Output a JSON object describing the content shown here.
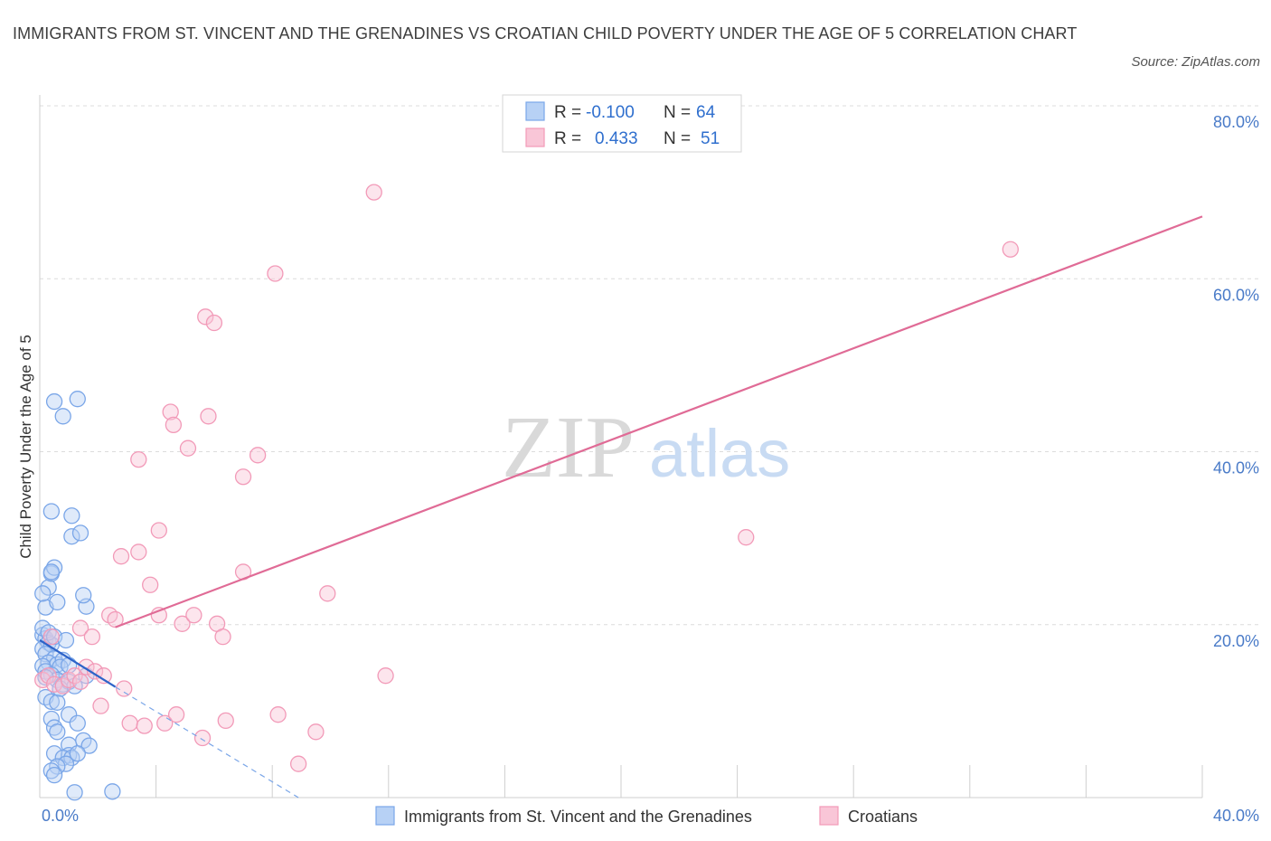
{
  "header": {
    "title": "IMMIGRANTS FROM ST. VINCENT AND THE GRENADINES VS CROATIAN CHILD POVERTY UNDER THE AGE OF 5 CORRELATION CHART",
    "source": "Source: ZipAtlas.com"
  },
  "legend_top": {
    "r_label": "R =",
    "n_label": "N =",
    "rows": [
      {
        "r": "-0.100",
        "n": "64"
      },
      {
        "r": "0.433",
        "n": "51"
      }
    ]
  },
  "watermark": {
    "zip": "ZIP",
    "atlas": "atlas"
  },
  "chart_data": {
    "type": "scatter",
    "title": "IMMIGRANTS FROM ST. VINCENT AND THE GRENADINES VS CROATIAN CHILD POVERTY UNDER THE AGE OF 5 CORRELATION CHART",
    "xlabel": "",
    "ylabel": "Child Poverty Under the Age of 5",
    "xlim": [
      0,
      40
    ],
    "ylim": [
      0,
      80
    ],
    "x_tick_labels": [
      "0.0%",
      "40.0%"
    ],
    "y_ticks": [
      20,
      40,
      60,
      80
    ],
    "y_tick_labels": [
      "20.0%",
      "40.0%",
      "60.0%",
      "80.0%"
    ],
    "grid": true,
    "legend_position": "bottom",
    "series": [
      {
        "name": "Immigrants from St. Vincent and the Grenadines",
        "color": "#7aa6e8",
        "line_color": "#2d63c8",
        "R": -0.1,
        "N": 64,
        "trend": {
          "x0": 0,
          "y0": 18.2,
          "x1": 2.6,
          "y1": 12.8,
          "dash_to_x": 8.9,
          "dash_to_y": 0
        },
        "points": [
          [
            0.1,
            18.8
          ],
          [
            0.2,
            18.4
          ],
          [
            0.3,
            17.9
          ],
          [
            0.1,
            17.2
          ],
          [
            0.4,
            17.7
          ],
          [
            0.2,
            16.6
          ],
          [
            0.5,
            16.1
          ],
          [
            0.3,
            15.6
          ],
          [
            0.6,
            15.4
          ],
          [
            0.1,
            15.2
          ],
          [
            0.8,
            15.9
          ],
          [
            0.7,
            15.1
          ],
          [
            1.0,
            15.3
          ],
          [
            0.2,
            14.6
          ],
          [
            0.4,
            14.2
          ],
          [
            0.6,
            13.6
          ],
          [
            0.8,
            13.1
          ],
          [
            1.0,
            13.4
          ],
          [
            1.6,
            14.1
          ],
          [
            0.1,
            19.6
          ],
          [
            0.3,
            19.1
          ],
          [
            0.5,
            18.6
          ],
          [
            0.9,
            18.2
          ],
          [
            0.2,
            22.0
          ],
          [
            0.6,
            22.6
          ],
          [
            1.6,
            22.1
          ],
          [
            0.3,
            24.3
          ],
          [
            1.5,
            23.4
          ],
          [
            0.4,
            25.9
          ],
          [
            0.5,
            26.6
          ],
          [
            0.4,
            26.1
          ],
          [
            1.1,
            30.2
          ],
          [
            1.4,
            30.6
          ],
          [
            1.1,
            32.6
          ],
          [
            0.4,
            33.1
          ],
          [
            0.5,
            45.8
          ],
          [
            0.8,
            44.1
          ],
          [
            1.3,
            46.1
          ],
          [
            0.1,
            23.6
          ],
          [
            0.2,
            11.6
          ],
          [
            0.4,
            11.1
          ],
          [
            0.6,
            11.0
          ],
          [
            1.0,
            9.6
          ],
          [
            0.4,
            9.1
          ],
          [
            1.3,
            8.6
          ],
          [
            0.5,
            8.1
          ],
          [
            0.6,
            7.6
          ],
          [
            1.5,
            6.6
          ],
          [
            1.0,
            6.1
          ],
          [
            1.7,
            6.0
          ],
          [
            0.5,
            5.1
          ],
          [
            1.0,
            4.9
          ],
          [
            0.8,
            4.6
          ],
          [
            1.1,
            4.6
          ],
          [
            1.3,
            5.1
          ],
          [
            0.9,
            3.9
          ],
          [
            0.6,
            3.6
          ],
          [
            0.4,
            3.1
          ],
          [
            0.5,
            2.6
          ],
          [
            1.2,
            0.6
          ],
          [
            2.5,
            0.7
          ],
          [
            0.2,
            13.9
          ],
          [
            0.7,
            12.6
          ],
          [
            1.2,
            12.9
          ]
        ]
      },
      {
        "name": "Croatians",
        "color": "#f29ab8",
        "line_color": "#e06b96",
        "R": 0.433,
        "N": 51,
        "trend": {
          "x0": 2.6,
          "y0": 19.7,
          "x1": 40.0,
          "y1": 67.2
        },
        "points": [
          [
            0.1,
            13.6
          ],
          [
            0.3,
            14.1
          ],
          [
            0.5,
            13.1
          ],
          [
            0.8,
            12.9
          ],
          [
            1.0,
            13.6
          ],
          [
            1.2,
            14.1
          ],
          [
            1.4,
            13.4
          ],
          [
            1.6,
            15.1
          ],
          [
            1.9,
            14.6
          ],
          [
            2.2,
            14.1
          ],
          [
            0.4,
            18.6
          ],
          [
            1.4,
            19.6
          ],
          [
            1.8,
            18.6
          ],
          [
            2.4,
            21.1
          ],
          [
            2.6,
            20.6
          ],
          [
            2.9,
            12.6
          ],
          [
            2.1,
            10.6
          ],
          [
            3.1,
            8.6
          ],
          [
            3.6,
            8.3
          ],
          [
            4.1,
            21.1
          ],
          [
            4.3,
            8.6
          ],
          [
            4.7,
            9.6
          ],
          [
            4.9,
            20.1
          ],
          [
            5.3,
            21.1
          ],
          [
            5.6,
            6.9
          ],
          [
            6.1,
            20.1
          ],
          [
            6.3,
            18.6
          ],
          [
            6.4,
            8.9
          ],
          [
            7.0,
            26.1
          ],
          [
            8.2,
            9.6
          ],
          [
            8.9,
            3.9
          ],
          [
            9.5,
            7.6
          ],
          [
            9.9,
            23.6
          ],
          [
            11.9,
            14.1
          ],
          [
            2.8,
            27.9
          ],
          [
            3.4,
            28.4
          ],
          [
            3.8,
            24.6
          ],
          [
            4.1,
            30.9
          ],
          [
            3.4,
            39.1
          ],
          [
            4.5,
            44.6
          ],
          [
            4.6,
            43.1
          ],
          [
            5.1,
            40.4
          ],
          [
            5.8,
            44.1
          ],
          [
            7.0,
            37.1
          ],
          [
            7.5,
            39.6
          ],
          [
            5.7,
            55.6
          ],
          [
            6.0,
            54.9
          ],
          [
            8.1,
            60.6
          ],
          [
            11.5,
            70.0
          ],
          [
            24.3,
            30.1
          ],
          [
            33.4,
            63.4
          ]
        ]
      }
    ]
  }
}
